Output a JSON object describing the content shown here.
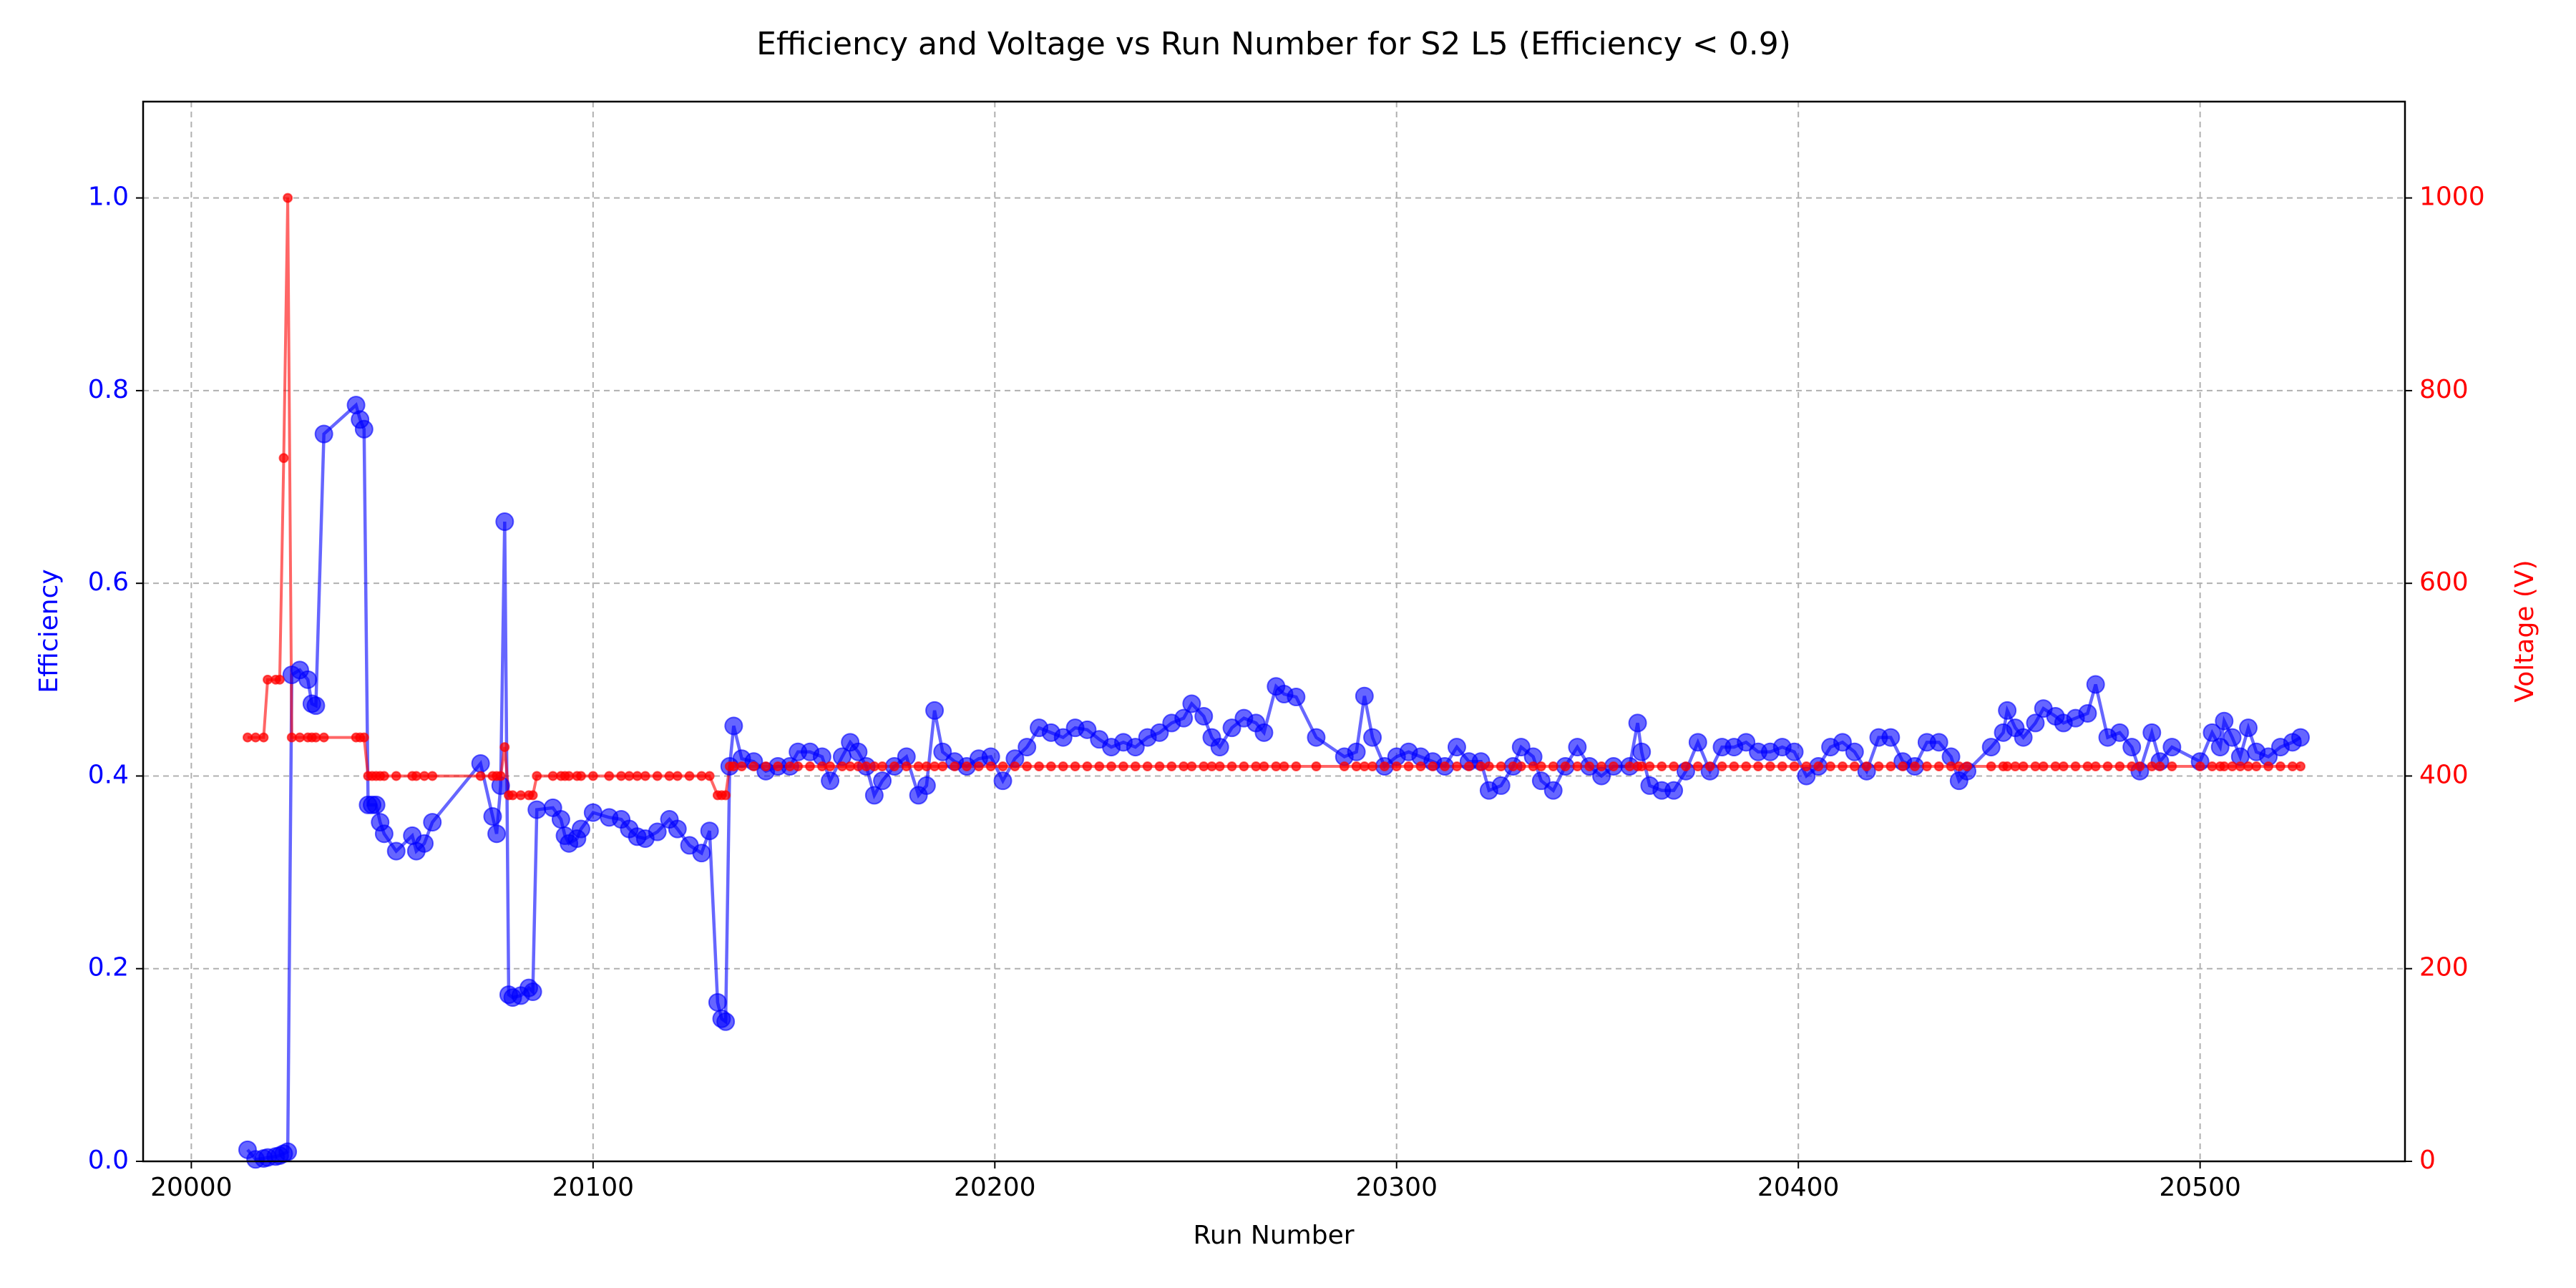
{
  "chart_data": {
    "type": "line",
    "title": "Efficiency and Voltage vs Run Number for S2 L5 (Efficiency < 0.9)",
    "x_label": "Run Number",
    "y_label": "Efficiency",
    "y2_label": "Voltage (V)",
    "xlim": [
      19988,
      20551
    ],
    "ylim": [
      0,
      1.1
    ],
    "y2lim": [
      0,
      1100
    ],
    "xticks": [
      20000,
      20100,
      20200,
      20300,
      20400,
      20500
    ],
    "yticks": [
      {
        "value": 0,
        "label": "0.0"
      },
      0.2,
      0.4,
      0.6,
      0.8,
      {
        "value": 1,
        "label": "1.0"
      }
    ],
    "y2ticks": [
      0,
      200,
      400,
      600,
      800,
      1000
    ],
    "grid": true,
    "x": [
      20014,
      20016,
      20018,
      20019,
      20021,
      20022,
      20023,
      20024,
      20025,
      20027,
      20029,
      20030,
      20031,
      20033,
      20041,
      20042,
      20043,
      20044,
      20045,
      20046,
      20047,
      20048,
      20051,
      20055,
      20056,
      20058,
      20060,
      20072,
      20075,
      20076,
      20077,
      20078,
      20079,
      20080,
      20082,
      20084,
      20085,
      20086,
      20090,
      20092,
      20093,
      20094,
      20096,
      20097,
      20100,
      20104,
      20107,
      20109,
      20111,
      20113,
      20116,
      20119,
      20121,
      20124,
      20127,
      20129,
      20131,
      20132,
      20133,
      20134,
      20135,
      20137,
      20140,
      20143,
      20146,
      20149,
      20151,
      20154,
      20157,
      20159,
      20162,
      20164,
      20166,
      20168,
      20170,
      20172,
      20175,
      20178,
      20181,
      20183,
      20185,
      20187,
      20190,
      20193,
      20196,
      20199,
      20202,
      20205,
      20208,
      20211,
      20214,
      20217,
      20220,
      20223,
      20226,
      20229,
      20232,
      20235,
      20238,
      20241,
      20244,
      20247,
      20249,
      20252,
      20254,
      20256,
      20259,
      20262,
      20265,
      20267,
      20270,
      20272,
      20275,
      20280,
      20287,
      20290,
      20292,
      20294,
      20297,
      20300,
      20303,
      20306,
      20309,
      20312,
      20315,
      20318,
      20321,
      20323,
      20326,
      20329,
      20331,
      20334,
      20336,
      20339,
      20342,
      20345,
      20348,
      20351,
      20354,
      20358,
      20360,
      20361,
      20363,
      20366,
      20369,
      20372,
      20375,
      20378,
      20381,
      20384,
      20387,
      20390,
      20393,
      20396,
      20399,
      20402,
      20405,
      20408,
      20411,
      20414,
      20417,
      20420,
      20423,
      20426,
      20429,
      20432,
      20435,
      20438,
      20440,
      20442,
      20448,
      20451,
      20452,
      20454,
      20456,
      20459,
      20461,
      20464,
      20466,
      20469,
      20472,
      20474,
      20477,
      20480,
      20483,
      20485,
      20488,
      20490,
      20493,
      20500,
      20503,
      20505,
      20506,
      20508,
      20510,
      20512,
      20514,
      20517,
      20520,
      20523,
      20525
    ],
    "series": [
      {
        "color": "#0000ff",
        "axis": "y",
        "values": [
          0.012,
          0.002,
          0.003,
          0.004,
          0.005,
          0.006,
          0.008,
          0.01,
          0.505,
          0.51,
          0.5,
          0.475,
          0.473,
          0.755,
          0.785,
          0.77,
          0.76,
          0.37,
          0.37,
          0.37,
          0.352,
          0.34,
          0.322,
          0.338,
          0.322,
          0.33,
          0.352,
          0.413,
          0.358,
          0.34,
          0.39,
          0.664,
          0.173,
          0.17,
          0.172,
          0.18,
          0.176,
          0.365,
          0.367,
          0.355,
          0.338,
          0.33,
          0.335,
          0.345,
          0.362,
          0.357,
          0.355,
          0.345,
          0.337,
          0.335,
          0.342,
          0.355,
          0.345,
          0.328,
          0.32,
          0.343,
          0.165,
          0.148,
          0.145,
          0.41,
          0.452,
          0.418,
          0.415,
          0.405,
          0.41,
          0.41,
          0.425,
          0.425,
          0.42,
          0.395,
          0.42,
          0.435,
          0.425,
          0.41,
          0.38,
          0.395,
          0.41,
          0.42,
          0.38,
          0.39,
          0.468,
          0.425,
          0.415,
          0.41,
          0.418,
          0.42,
          0.395,
          0.418,
          0.43,
          0.45,
          0.445,
          0.44,
          0.45,
          0.448,
          0.438,
          0.43,
          0.435,
          0.43,
          0.44,
          0.445,
          0.455,
          0.46,
          0.475,
          0.462,
          0.44,
          0.43,
          0.45,
          0.46,
          0.455,
          0.445,
          0.493,
          0.485,
          0.482,
          0.44,
          0.42,
          0.425,
          0.483,
          0.44,
          0.41,
          0.42,
          0.425,
          0.42,
          0.415,
          0.41,
          0.43,
          0.415,
          0.415,
          0.385,
          0.39,
          0.41,
          0.43,
          0.42,
          0.395,
          0.385,
          0.41,
          0.43,
          0.41,
          0.4,
          0.41,
          0.41,
          0.455,
          0.425,
          0.39,
          0.385,
          0.385,
          0.405,
          0.435,
          0.405,
          0.43,
          0.43,
          0.435,
          0.425,
          0.425,
          0.43,
          0.425,
          0.4,
          0.41,
          0.43,
          0.435,
          0.425,
          0.405,
          0.44,
          0.44,
          0.415,
          0.41,
          0.435,
          0.435,
          0.42,
          0.395,
          0.405,
          0.43,
          0.445,
          0.468,
          0.45,
          0.44,
          0.455,
          0.47,
          0.462,
          0.455,
          0.46,
          0.465,
          0.495,
          0.44,
          0.445,
          0.43,
          0.405,
          0.445,
          0.415,
          0.43,
          0.415,
          0.445,
          0.43,
          0.457,
          0.44,
          0.42,
          0.45,
          0.425,
          0.42,
          0.43,
          0.435,
          0.44
        ]
      },
      {
        "color": "#ff0000",
        "axis": "y2",
        "values": [
          440,
          440,
          440,
          500,
          500,
          500,
          730,
          1000,
          440,
          440,
          440,
          440,
          440,
          440,
          440,
          440,
          440,
          400,
          400,
          400,
          400,
          400,
          400,
          400,
          400,
          400,
          400,
          400,
          400,
          400,
          400,
          430,
          380,
          380,
          380,
          380,
          380,
          400,
          400,
          400,
          400,
          400,
          400,
          400,
          400,
          400,
          400,
          400,
          400,
          400,
          400,
          400,
          400,
          400,
          400,
          400,
          380,
          380,
          380,
          410,
          410,
          410,
          410,
          410,
          410,
          410,
          410,
          410,
          410,
          410,
          410,
          410,
          410,
          410,
          410,
          410,
          410,
          410,
          410,
          410,
          410,
          410,
          410,
          410,
          410,
          410,
          410,
          410,
          410,
          410,
          410,
          410,
          410,
          410,
          410,
          410,
          410,
          410,
          410,
          410,
          410,
          410,
          410,
          410,
          410,
          410,
          410,
          410,
          410,
          410,
          410,
          410,
          410,
          410,
          410,
          410,
          410,
          410,
          410,
          410,
          410,
          410,
          410,
          410,
          410,
          410,
          410,
          410,
          410,
          410,
          410,
          410,
          410,
          410,
          410,
          410,
          410,
          410,
          410,
          410,
          410,
          410,
          410,
          410,
          410,
          410,
          410,
          410,
          410,
          410,
          410,
          410,
          410,
          410,
          410,
          410,
          410,
          410,
          410,
          410,
          410,
          410,
          410,
          410,
          410,
          410,
          410,
          410,
          410,
          410,
          410,
          410,
          410,
          410,
          410,
          410,
          410,
          410,
          410,
          410,
          410,
          410,
          410,
          410,
          410,
          410,
          410,
          410,
          410,
          410,
          410,
          410,
          410,
          410,
          410,
          410,
          410,
          410,
          410,
          410,
          410
        ]
      }
    ]
  }
}
